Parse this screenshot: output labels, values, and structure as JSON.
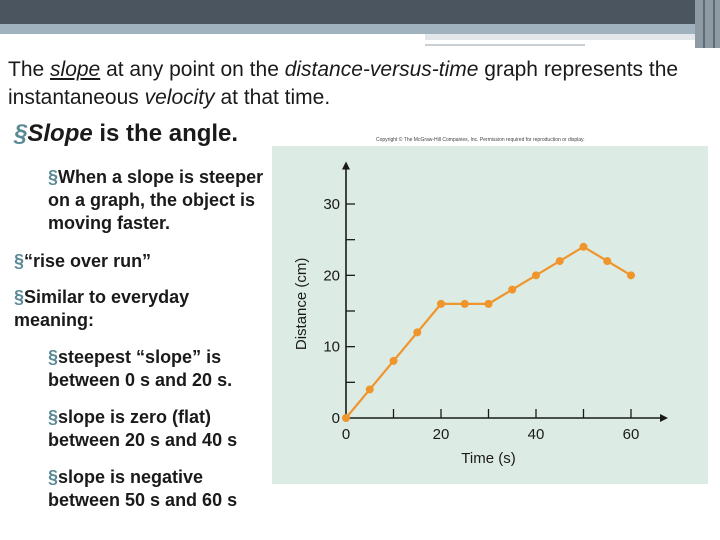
{
  "slide": {
    "title_part1": "The ",
    "title_slope": "slope",
    "title_part2": " at any point on the ",
    "title_dvt": "distance-versus-time",
    "title_part3": " graph represents the instantaneous ",
    "title_velocity": "velocity",
    "title_part4": " at that time.",
    "bullet_mark": "§",
    "bullet1_italic": "Slope",
    "bullet1_rest": " is the angle.",
    "sub1": "When a slope is steeper on a graph, the object is moving faster.",
    "bullet2": "“rise over run”",
    "bullet3": "Similar to everyday meaning:",
    "sub2": "steepest “slope” is between 0 s and 20 s.",
    "sub3": "slope is zero (flat) between 20 s and 40 s",
    "sub4": "slope is negative between 50 s and 60 s",
    "copyright": "Copyright © The McGraw-Hill Companies, Inc. Permission required for reproduction or display."
  },
  "colors": {
    "line": "#f0952b",
    "chart_bg": "#dcebe3",
    "bullet_mark": "#5a8a96"
  },
  "chart_data": {
    "type": "line",
    "xlabel": "Time (s)",
    "ylabel": "Distance (cm)",
    "x_ticks": [
      0,
      20,
      40,
      60
    ],
    "y_ticks": [
      0,
      10,
      20,
      30
    ],
    "xlim": [
      0,
      64
    ],
    "ylim": [
      0,
      34
    ],
    "grid": false,
    "series": [
      {
        "x": [
          0,
          5,
          10,
          15,
          20,
          25,
          30,
          35,
          40,
          45,
          50,
          55,
          60
        ],
        "y": [
          0,
          4,
          8,
          12,
          16,
          16,
          16,
          18,
          20,
          22,
          24,
          22,
          20
        ]
      }
    ]
  }
}
